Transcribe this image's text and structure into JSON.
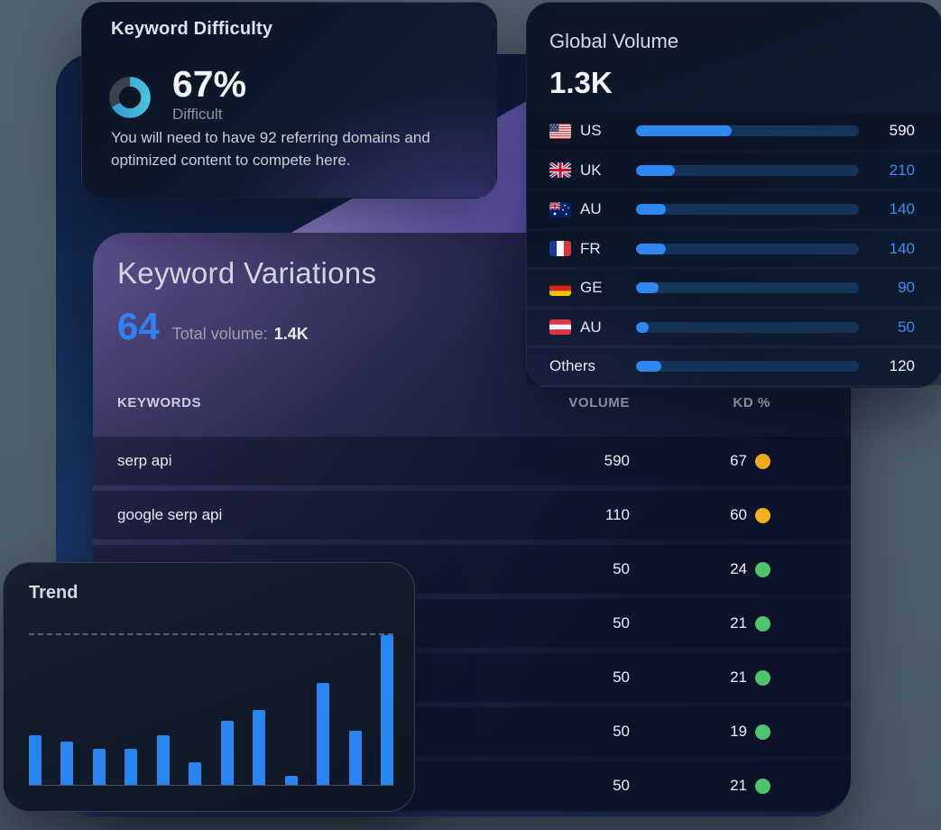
{
  "colors": {
    "accent_blue": "#2f82f0",
    "bar_fill": "#2e87f2",
    "value_blue": "#3e8df3",
    "yellow": "#f2b01e",
    "green": "#4ec46c",
    "donut_remainder": "#3a424d"
  },
  "keyword_difficulty": {
    "title": "Keyword Difficulty",
    "percent": "67%",
    "percent_value": 67,
    "level_label": "Difficult",
    "description": "You will need to have 92 referring domains and optimized content to compete here."
  },
  "global_volume": {
    "title": "Global Volume",
    "total": "1.3K",
    "rows": [
      {
        "flag": "flag-us",
        "label": "US",
        "value": "590",
        "value_blue": false,
        "bar_pct": 43
      },
      {
        "flag": "flag-uk",
        "label": "UK",
        "value": "210",
        "value_blue": true,
        "bar_pct": 17.5
      },
      {
        "flag": "flag-au",
        "label": "AU",
        "value": "140",
        "value_blue": true,
        "bar_pct": 13.5
      },
      {
        "flag": "flag-fr",
        "label": "FR",
        "value": "140",
        "value_blue": true,
        "bar_pct": 13.5
      },
      {
        "flag": "flag-de",
        "label": "GE",
        "value": "90",
        "value_blue": true,
        "bar_pct": 10
      },
      {
        "flag": "flag-at",
        "label": "AU",
        "value": "50",
        "value_blue": true,
        "bar_pct": 5.5
      },
      {
        "flag": null,
        "label": "Others",
        "value": "120",
        "value_blue": false,
        "bar_pct": 11.5
      }
    ]
  },
  "keyword_variations": {
    "title": "Keyword Variations",
    "count": "64",
    "total_volume_label": "Total volume:",
    "total_volume_value": "1.4K",
    "columns": [
      "KEYWORDS",
      "VOLUME",
      "KD %"
    ],
    "rows": [
      {
        "keyword": "serp api",
        "volume": "590",
        "kd": "67",
        "kd_color": "yellow"
      },
      {
        "keyword": "google serp api",
        "volume": "110",
        "kd": "60",
        "kd_color": "yellow"
      },
      {
        "keyword": "",
        "volume": "50",
        "kd": "24",
        "kd_color": "green"
      },
      {
        "keyword": "",
        "volume": "50",
        "kd": "21",
        "kd_color": "green"
      },
      {
        "keyword": "",
        "volume": "50",
        "kd": "21",
        "kd_color": "green"
      },
      {
        "keyword": "",
        "volume": "50",
        "kd": "19",
        "kd_color": "green"
      },
      {
        "keyword": "",
        "volume": "50",
        "kd": "21",
        "kd_color": "green"
      }
    ]
  },
  "trend": {
    "title": "Trend",
    "bars_pct": [
      33,
      29,
      24,
      24,
      33,
      15,
      43,
      50,
      6,
      68,
      36,
      100
    ]
  },
  "chart_data": [
    {
      "type": "pie",
      "title": "Keyword Difficulty",
      "values": [
        67,
        33
      ],
      "labels": [
        "Difficult",
        "remainder"
      ],
      "unit": "%",
      "style": "donut"
    },
    {
      "type": "bar",
      "title": "Global Volume",
      "orientation": "horizontal",
      "categories": [
        "US",
        "UK",
        "AU",
        "FR",
        "GE",
        "AU",
        "Others"
      ],
      "values": [
        590,
        210,
        140,
        140,
        90,
        50,
        120
      ],
      "total_label": "1.3K"
    },
    {
      "type": "table",
      "title": "Keyword Variations",
      "columns": [
        "KEYWORDS",
        "VOLUME",
        "KD %"
      ],
      "rows": [
        [
          "serp api",
          590,
          67
        ],
        [
          "google serp api",
          110,
          60
        ],
        [
          "",
          50,
          24
        ],
        [
          "",
          50,
          21
        ],
        [
          "",
          50,
          21
        ],
        [
          "",
          50,
          19
        ],
        [
          "",
          50,
          21
        ]
      ]
    },
    {
      "type": "bar",
      "title": "Trend",
      "values": [
        33,
        29,
        24,
        24,
        33,
        15,
        43,
        50,
        6,
        68,
        36,
        100
      ],
      "ylabel": "relative height (% of max, axis unlabeled)",
      "grid": "single dashed max line"
    }
  ]
}
